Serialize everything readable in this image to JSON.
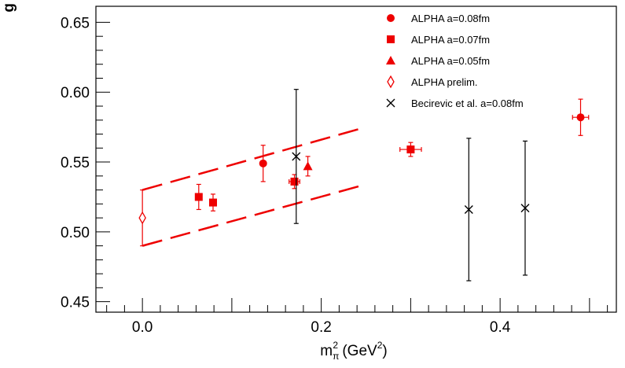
{
  "chart_data": {
    "type": "scatter",
    "title": "",
    "xlabel": "m",
    "xlabel_sub": "π",
    "xlabel_sup": "2",
    "xlabel_unit_prefix": " (GeV",
    "xlabel_unit_sup": "2",
    "xlabel_unit_suffix": ")",
    "ylabel": "g",
    "xlim": [
      -0.052,
      0.53
    ],
    "ylim": [
      0.4425,
      0.6615
    ],
    "xticks": [
      0.0,
      0.2,
      0.4
    ],
    "xtick_labels": [
      "0.0",
      "0.2",
      "0.4"
    ],
    "yticks": [
      0.45,
      0.5,
      0.55,
      0.6,
      0.65
    ],
    "ytick_labels": [
      "0.45",
      "0.50",
      "0.55",
      "0.60",
      "0.65"
    ],
    "grid": false,
    "legend_position": "top-right",
    "series": [
      {
        "name": "ALPHA a=0.08fm",
        "marker": "circle",
        "color": "#ee0000",
        "points": [
          {
            "x": 0.135,
            "y": 0.549,
            "yerr": 0.013,
            "xerr": 0
          },
          {
            "x": 0.49,
            "y": 0.582,
            "yerr": 0.013,
            "xerr": 0.009
          }
        ]
      },
      {
        "name": "ALPHA a=0.07fm",
        "marker": "square",
        "color": "#ee0000",
        "points": [
          {
            "x": 0.063,
            "y": 0.525,
            "yerr": 0.009,
            "xerr": 0
          },
          {
            "x": 0.079,
            "y": 0.521,
            "yerr": 0.006,
            "xerr": 0
          },
          {
            "x": 0.17,
            "y": 0.536,
            "yerr": 0.005,
            "xerr": 0.006
          },
          {
            "x": 0.3,
            "y": 0.559,
            "yerr": 0.005,
            "xerr": 0.012
          }
        ]
      },
      {
        "name": "ALPHA a=0.05fm",
        "marker": "triangle",
        "color": "#ee0000",
        "points": [
          {
            "x": 0.185,
            "y": 0.547,
            "yerr": 0.007,
            "xerr": 0
          }
        ]
      },
      {
        "name": "ALPHA prelim.",
        "marker": "open-diamond",
        "color": "#ee0000",
        "points": [
          {
            "x": 0.0,
            "y": 0.51,
            "yerr": 0.02,
            "xerr": 0
          }
        ]
      },
      {
        "name": "Becirevic et al. a=0.08fm",
        "marker": "cross",
        "color": "#000000",
        "points": [
          {
            "x": 0.172,
            "y": 0.554,
            "yerr": 0.048,
            "xerr": 0
          },
          {
            "x": 0.365,
            "y": 0.516,
            "yerr": 0.051,
            "xerr": 0
          },
          {
            "x": 0.428,
            "y": 0.517,
            "yerr": 0.048,
            "xerr": 0
          }
        ]
      }
    ],
    "bands": [
      {
        "name": "upper",
        "color": "#ee0000",
        "style": "dashed",
        "x": [
          0.0,
          0.25
        ],
        "y": [
          0.53,
          0.575
        ]
      },
      {
        "name": "lower",
        "color": "#ee0000",
        "style": "dashed",
        "x": [
          0.0,
          0.25
        ],
        "y": [
          0.49,
          0.534
        ]
      }
    ]
  }
}
